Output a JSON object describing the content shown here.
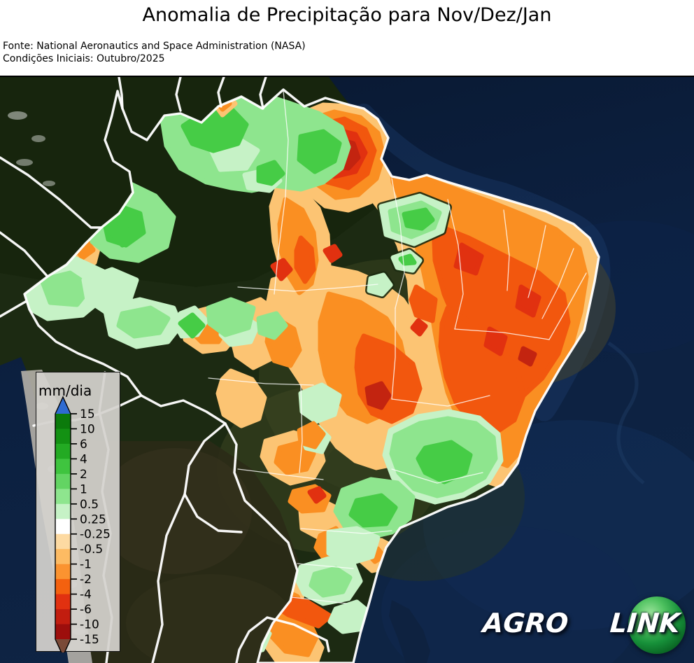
{
  "title": "Anomalia de Precipitação para Nov/Dez/Jan",
  "source": {
    "line1": "Fonte: National Aeronautics and Space Administration (NASA)",
    "line2": "Condições Iniciais: Outubro/2025"
  },
  "legend": {
    "title": "mm/dia",
    "ticks": [
      "15",
      "10",
      "6",
      "4",
      "2",
      "1",
      "0.5",
      "0.25",
      "-0.25",
      "-0.5",
      "-1",
      "-2",
      "-4",
      "-6",
      "-10",
      "-15"
    ],
    "segment_colors": [
      "#0b7a0b",
      "#139113",
      "#23aa23",
      "#3fc43f",
      "#63d463",
      "#8ee58e",
      "#c6f2c6",
      "#ffffff",
      "#fddaa2",
      "#fdbb63",
      "#fb9330",
      "#f4610f",
      "#e13110",
      "#c21d0f",
      "#9d0e0c"
    ],
    "over_arrow_color": "#2e6bd1",
    "under_arrow_color": "#7a4a38"
  },
  "map": {
    "area": "Brazil and surrounding South America",
    "basemap": "satellite",
    "overlay": "precipitation anomaly contours (mm/dia)"
  },
  "palette": {
    "pale_green": "#c6f2c6",
    "light_green": "#8ee58e",
    "green": "#46cc46",
    "pale_orange": "#fcc473",
    "orange": "#fa8f22",
    "red_orange": "#f2570e",
    "red": "#e13110",
    "dark_red": "#c32410",
    "ocean": "#0b1c38",
    "land": "#1c2a12",
    "andes": "#b5b0a8",
    "border_white": "#ffffff"
  },
  "logo": {
    "part1": "AGRO",
    "part2": "LINK"
  }
}
